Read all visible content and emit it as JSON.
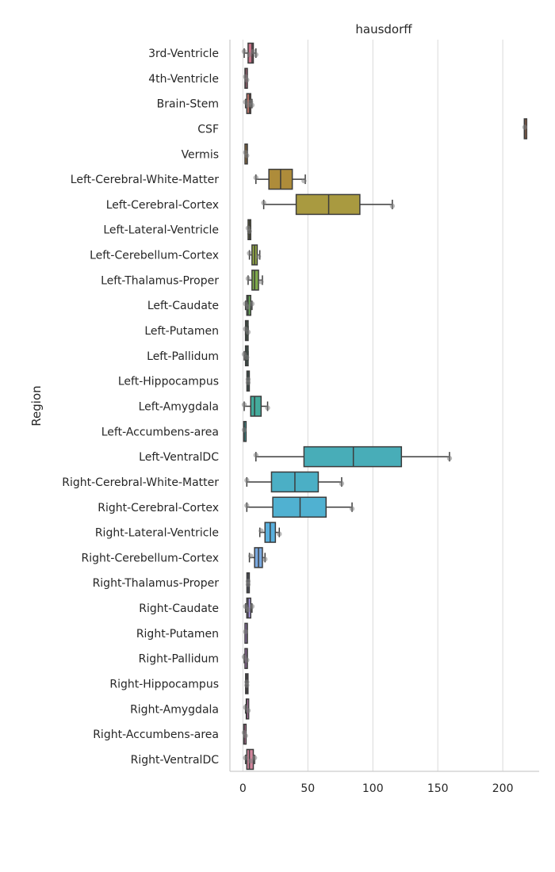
{
  "chart_data": {
    "type": "box",
    "orientation": "horizontal",
    "title": "hausdorff",
    "xlabel": "",
    "ylabel": "Region",
    "xlim": [
      -10,
      228
    ],
    "xticks": [
      0,
      50,
      100,
      150,
      200
    ],
    "grid": "vertical",
    "box_outline_color": "#3c3c3c",
    "point_color": "#808080",
    "categories": [
      {
        "name": "3rd-Ventricle",
        "whisker_low": 1,
        "q1": 4,
        "median": 7,
        "q3": 8,
        "whisker_high": 10,
        "outliers": [],
        "points": [
          1,
          5,
          8,
          10
        ],
        "color": "#c97287"
      },
      {
        "name": "4th-Ventricle",
        "whisker_low": 2,
        "q1": 2,
        "median": 2,
        "q3": 3,
        "whisker_high": 3,
        "outliers": [],
        "points": [
          2,
          3
        ],
        "color": "#c7728a"
      },
      {
        "name": "Brain-Stem",
        "whisker_low": 2,
        "q1": 3,
        "median": 5,
        "q3": 6,
        "whisker_high": 7,
        "outliers": [],
        "points": [
          2,
          4,
          6,
          7
        ],
        "color": "#c57a6e"
      },
      {
        "name": "CSF",
        "whisker_low": 217,
        "q1": 217,
        "median": 217,
        "q3": 218,
        "whisker_high": 218,
        "outliers": [],
        "points": [
          217
        ],
        "color": "#c17a52"
      },
      {
        "name": "Vermis",
        "whisker_low": 2,
        "q1": 2,
        "median": 3,
        "q3": 3,
        "whisker_high": 3,
        "outliers": [],
        "points": [
          2,
          3
        ],
        "color": "#b8833f"
      },
      {
        "name": "Left-Cerebral-White-Matter",
        "whisker_low": 10,
        "q1": 20,
        "median": 29,
        "q3": 38,
        "whisker_high": 48,
        "outliers": [],
        "points": [
          10,
          47
        ],
        "color": "#ae8c3a"
      },
      {
        "name": "Left-Cerebral-Cortex",
        "whisker_low": 16,
        "q1": 41,
        "median": 66,
        "q3": 90,
        "whisker_high": 115,
        "outliers": [],
        "points": [
          16,
          115
        ],
        "color": "#a99a40"
      },
      {
        "name": "Left-Lateral-Ventricle",
        "whisker_low": 4,
        "q1": 4,
        "median": 5,
        "q3": 6,
        "whisker_high": 6,
        "outliers": [],
        "points": [
          4,
          5
        ],
        "color": "#a2a542"
      },
      {
        "name": "Left-Cerebellum-Cortex",
        "whisker_low": 5,
        "q1": 7,
        "median": 9,
        "q3": 11,
        "whisker_high": 13,
        "outliers": [],
        "points": [
          5,
          12
        ],
        "color": "#97ae45"
      },
      {
        "name": "Left-Thalamus-Proper",
        "whisker_low": 4,
        "q1": 7,
        "median": 9,
        "q3": 12,
        "whisker_high": 15,
        "outliers": [],
        "points": [
          4,
          14
        ],
        "color": "#80ac4c"
      },
      {
        "name": "Left-Caudate",
        "whisker_low": 2,
        "q1": 3,
        "median": 4,
        "q3": 6,
        "whisker_high": 7,
        "outliers": [],
        "points": [
          2,
          4,
          7
        ],
        "color": "#6aaa5a"
      },
      {
        "name": "Left-Putamen",
        "whisker_low": 2,
        "q1": 2,
        "median": 3,
        "q3": 4,
        "whisker_high": 4,
        "outliers": [],
        "points": [
          2,
          4
        ],
        "color": "#52a970"
      },
      {
        "name": "Left-Pallidum",
        "whisker_low": 1,
        "q1": 2,
        "median": 3,
        "q3": 4,
        "whisker_high": 4,
        "outliers": [],
        "points": [
          1,
          3
        ],
        "color": "#45a87e"
      },
      {
        "name": "Left-Hippocampus",
        "whisker_low": 4,
        "q1": 4,
        "median": 4,
        "q3": 4,
        "whisker_high": 4,
        "outliers": [],
        "points": [
          4,
          4
        ],
        "color": "#45a88f"
      },
      {
        "name": "Left-Amygdala",
        "whisker_low": 1,
        "q1": 6,
        "median": 9,
        "q3": 14,
        "whisker_high": 19,
        "outliers": [],
        "points": [
          1,
          19
        ],
        "color": "#44ab9c"
      },
      {
        "name": "Left-Accumbens-area",
        "whisker_low": 1,
        "q1": 1,
        "median": 1,
        "q3": 2,
        "whisker_high": 2,
        "outliers": [],
        "points": [
          1
        ],
        "color": "#45abab"
      },
      {
        "name": "Left-VentralDC",
        "whisker_low": 10,
        "q1": 47,
        "median": 85,
        "q3": 122,
        "whisker_high": 159,
        "outliers": [],
        "points": [
          10,
          159
        ],
        "color": "#48adb8"
      },
      {
        "name": "Right-Cerebral-White-Matter",
        "whisker_low": 3,
        "q1": 22,
        "median": 40,
        "q3": 58,
        "whisker_high": 76,
        "outliers": [],
        "points": [
          3,
          76
        ],
        "color": "#4bafc5"
      },
      {
        "name": "Right-Cerebral-Cortex",
        "whisker_low": 3,
        "q1": 23,
        "median": 44,
        "q3": 64,
        "whisker_high": 84,
        "outliers": [],
        "points": [
          3,
          84
        ],
        "color": "#50b1d1"
      },
      {
        "name": "Right-Lateral-Ventricle",
        "whisker_low": 13,
        "q1": 17,
        "median": 21,
        "q3": 25,
        "whisker_high": 28,
        "outliers": [],
        "points": [
          14,
          28
        ],
        "color": "#59afdd"
      },
      {
        "name": "Right-Cerebellum-Cortex",
        "whisker_low": 5,
        "q1": 9,
        "median": 12,
        "q3": 15,
        "whisker_high": 17,
        "outliers": [],
        "points": [
          6,
          17
        ],
        "color": "#7aa9e0"
      },
      {
        "name": "Right-Thalamus-Proper",
        "whisker_low": 4,
        "q1": 4,
        "median": 4,
        "q3": 4,
        "whisker_high": 4,
        "outliers": [],
        "points": [
          4,
          4
        ],
        "color": "#95a2e3"
      },
      {
        "name": "Right-Caudate",
        "whisker_low": 2,
        "q1": 3,
        "median": 4,
        "q3": 6,
        "whisker_high": 7,
        "outliers": [],
        "points": [
          2,
          4,
          7
        ],
        "color": "#aa99e4"
      },
      {
        "name": "Right-Putamen",
        "whisker_low": 2,
        "q1": 2,
        "median": 3,
        "q3": 3,
        "whisker_high": 3,
        "outliers": [],
        "points": [
          2
        ],
        "color": "#bb8fe0"
      },
      {
        "name": "Right-Pallidum",
        "whisker_low": 1,
        "q1": 2,
        "median": 3,
        "q3": 3,
        "whisker_high": 3,
        "outliers": [],
        "points": [
          1,
          3
        ],
        "color": "#c98ad7"
      },
      {
        "name": "Right-Hippocampus",
        "whisker_low": 3,
        "q1": 3,
        "median": 3,
        "q3": 3,
        "whisker_high": 3,
        "outliers": [],
        "points": [
          3,
          3
        ],
        "color": "#d387cb"
      },
      {
        "name": "Right-Amygdala",
        "whisker_low": 2,
        "q1": 3,
        "median": 3,
        "q3": 4,
        "whisker_high": 4,
        "outliers": [],
        "points": [
          2,
          4
        ],
        "color": "#d585bd"
      },
      {
        "name": "Right-Accumbens-area",
        "whisker_low": 1,
        "q1": 1,
        "median": 1,
        "q3": 2,
        "whisker_high": 2,
        "outliers": [],
        "points": [
          1,
          2
        ],
        "color": "#d786ae"
      },
      {
        "name": "Right-VentralDC",
        "whisker_low": 2,
        "q1": 3,
        "median": 5,
        "q3": 8,
        "whisker_high": 9,
        "outliers": [],
        "points": [
          2,
          6,
          9
        ],
        "color": "#d2869d"
      }
    ]
  }
}
